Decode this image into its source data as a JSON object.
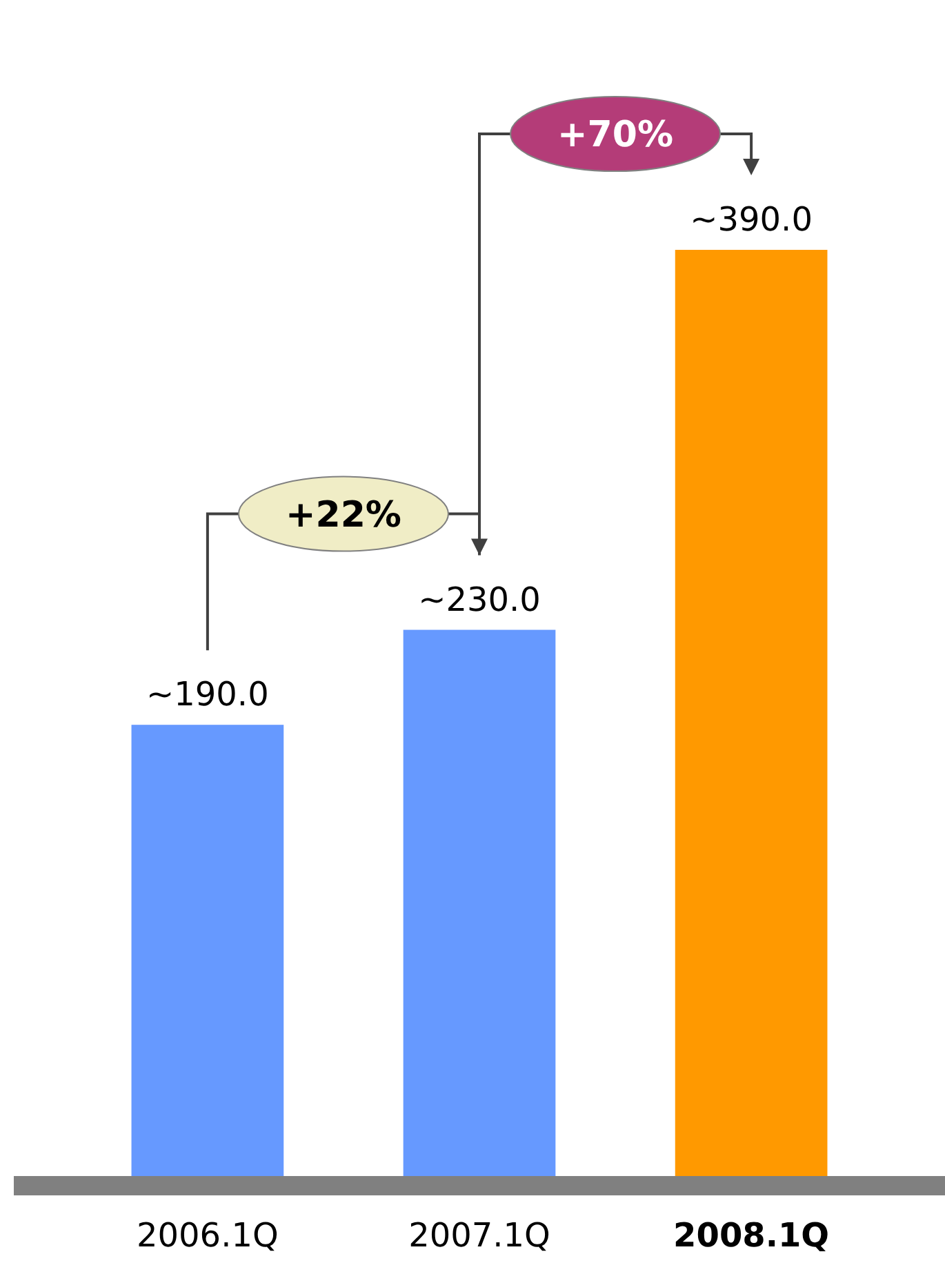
{
  "chart_data": {
    "type": "bar",
    "categories": [
      "2006.1Q",
      "2007.1Q",
      "2008.1Q"
    ],
    "values": [
      190,
      230,
      390
    ],
    "colors": [
      "#6699ff",
      "#6699ff",
      "#ff9900"
    ],
    "value_labels": [
      "~190.0",
      "~230.0",
      "~390.0"
    ],
    "annotations": [
      "+22%",
      "+70%"
    ]
  }
}
